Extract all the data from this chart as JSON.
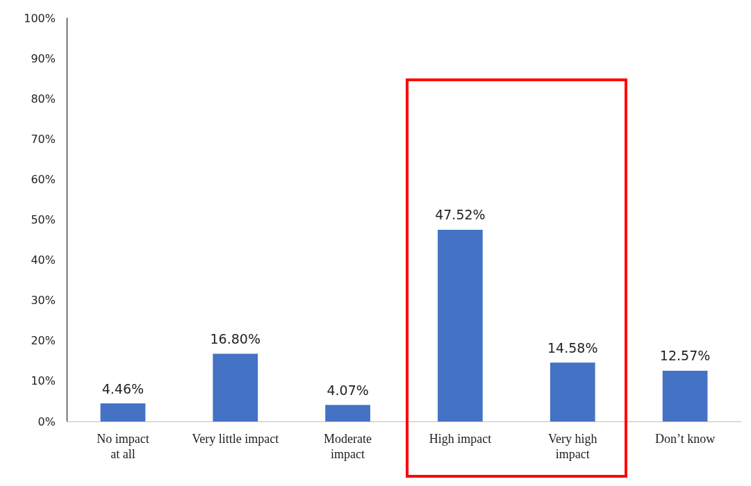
{
  "chart_data": {
    "type": "bar",
    "categories": [
      "No impact\nat all",
      "Very little impact",
      "Moderate\nimpact",
      "High impact",
      "Very high\nimpact",
      "Don’t know"
    ],
    "values": [
      4.46,
      16.8,
      4.07,
      47.52,
      14.58,
      12.57
    ],
    "value_labels": [
      "4.46%",
      "16.80%",
      "4.07%",
      "47.52%",
      "14.58%",
      "12.57%"
    ],
    "color": "#4472c4",
    "ylim": [
      0,
      100
    ],
    "yticks": [
      {
        "value": 0,
        "label": "0%"
      },
      {
        "value": 10,
        "label": "10%"
      },
      {
        "value": 20,
        "label": "20%"
      },
      {
        "value": 30,
        "label": "30%"
      },
      {
        "value": 40,
        "label": "40%"
      },
      {
        "value": 50,
        "label": "50%"
      },
      {
        "value": 60,
        "label": "60%"
      },
      {
        "value": 70,
        "label": "70%"
      },
      {
        "value": 80,
        "label": "80%"
      },
      {
        "value": 90,
        "label": "90%"
      },
      {
        "value": 100,
        "label": "100%"
      }
    ],
    "grid": false
  }
}
